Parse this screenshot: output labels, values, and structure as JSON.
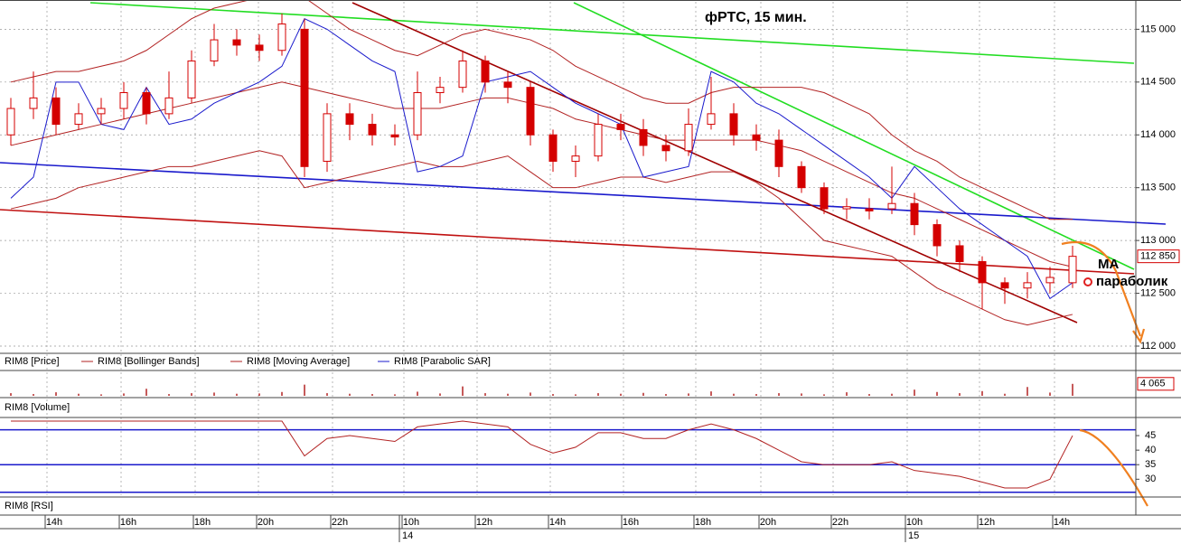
{
  "chart_data": [
    {
      "type": "candlestick",
      "title": "фРТС, 15 мин.",
      "price_name": "RIM8 [Price]",
      "color": "#d40000",
      "open": [
        114000,
        114250,
        114350,
        114100,
        114200,
        114250,
        114400,
        114200,
        114350,
        114700,
        114900,
        114850,
        114800,
        115000,
        113750,
        114200,
        114100,
        114000,
        114000,
        114400,
        114450,
        114700,
        114500,
        114450,
        114000,
        113750,
        113800,
        114100,
        114050,
        113900,
        113850,
        114100,
        114200,
        114000,
        113950,
        113700,
        113500,
        113300,
        113300,
        113300,
        113350,
        113150,
        112950,
        112800,
        112600,
        112550,
        112600,
        112600
      ],
      "high": [
        114350,
        114600,
        114450,
        114300,
        114350,
        114500,
        114450,
        114600,
        114800,
        115050,
        115000,
        114950,
        115150,
        115100,
        114300,
        114300,
        114200,
        114100,
        114600,
        114550,
        114800,
        114750,
        114600,
        114500,
        114050,
        113900,
        114200,
        114200,
        114150,
        114000,
        114250,
        114550,
        114300,
        114100,
        114050,
        113750,
        113550,
        113400,
        113400,
        113700,
        113450,
        113200,
        113000,
        112850,
        112650,
        112700,
        112750,
        112950
      ],
      "low": [
        113900,
        114150,
        114000,
        114050,
        114100,
        114150,
        114100,
        114150,
        114300,
        114650,
        114750,
        114700,
        114750,
        113600,
        113650,
        113950,
        113900,
        113900,
        113950,
        114300,
        114400,
        114400,
        114300,
        113900,
        113650,
        113600,
        113750,
        113950,
        113800,
        113750,
        113800,
        114050,
        113900,
        113850,
        113600,
        113450,
        113250,
        113200,
        113200,
        113250,
        113050,
        112850,
        112700,
        112350,
        112400,
        112450,
        112500,
        112550
      ],
      "close": [
        114250,
        114350,
        114100,
        114200,
        114250,
        114400,
        114200,
        114350,
        114700,
        114900,
        114850,
        114800,
        115050,
        113700,
        114200,
        114100,
        114000,
        113980,
        114400,
        114450,
        114700,
        114500,
        114450,
        114000,
        113750,
        113800,
        114100,
        114050,
        113900,
        113850,
        114100,
        114200,
        114000,
        113950,
        113700,
        113500,
        113300,
        113320,
        113280,
        113350,
        113150,
        112950,
        112800,
        112600,
        112550,
        112600,
        112650,
        112850
      ],
      "series": [
        {
          "name": "RIM8 [Bollinger Bands]",
          "color": "#b22222",
          "upper": [
            114500,
            114550,
            114600,
            114600,
            114650,
            114700,
            114800,
            114950,
            115100,
            115200,
            115250,
            115300,
            115350,
            115300,
            115150,
            115000,
            114900,
            114800,
            114750,
            114850,
            114950,
            115000,
            114950,
            114900,
            114800,
            114650,
            114550,
            114450,
            114350,
            114300,
            114300,
            114400,
            114450,
            114450,
            114450,
            114450,
            114400,
            114300,
            114200,
            114000,
            113850,
            113750,
            113600,
            113500,
            113400,
            113300,
            113200,
            113200
          ],
          "lower": [
            113300,
            113350,
            113400,
            113500,
            113550,
            113600,
            113650,
            113700,
            113700,
            113750,
            113800,
            113850,
            113800,
            113500,
            113550,
            113600,
            113650,
            113700,
            113750,
            113700,
            113700,
            113750,
            113800,
            113650,
            113500,
            113500,
            113550,
            113600,
            113600,
            113550,
            113600,
            113650,
            113650,
            113550,
            113400,
            113200,
            113000,
            112950,
            112900,
            112850,
            112700,
            112550,
            112450,
            112350,
            112250,
            112200,
            112250,
            112300
          ]
        },
        {
          "name": "RIM8 [Moving Average]",
          "color": "#b22222",
          "values": [
            113900,
            113950,
            114000,
            114050,
            114100,
            114150,
            114200,
            114250,
            114300,
            114350,
            114400,
            114450,
            114500,
            114450,
            114400,
            114350,
            114300,
            114250,
            114250,
            114250,
            114300,
            114350,
            114350,
            114300,
            114250,
            114150,
            114100,
            114050,
            114000,
            113950,
            113950,
            113950,
            113950,
            113950,
            113900,
            113850,
            113750,
            113650,
            113550,
            113450,
            113400,
            113300,
            113200,
            113100,
            113000,
            112900,
            112800,
            112750
          ]
        },
        {
          "name": "RIM8 [Parabolic SAR]",
          "color": "#1a1acc",
          "values": [
            113400,
            113600,
            114500,
            114500,
            114100,
            114050,
            114450,
            114100,
            114150,
            114300,
            114400,
            114500,
            114650,
            115100,
            115000,
            114850,
            114700,
            114600,
            113650,
            113700,
            113800,
            114500,
            114550,
            114600,
            114450,
            114300,
            114200,
            114100,
            113600,
            113650,
            113700,
            114600,
            114500,
            114300,
            114200,
            114050,
            113900,
            113750,
            113600,
            113400,
            113700,
            113500,
            113300,
            113150,
            113000,
            112850,
            112450,
            112600
          ]
        }
      ],
      "ylim": [
        111940,
        115260
      ],
      "yticks": [
        {
          "value": 115000,
          "label": "115 000"
        },
        {
          "value": 114500,
          "label": "114 500"
        },
        {
          "value": 114000,
          "label": "114 000"
        },
        {
          "value": 113500,
          "label": "113 500"
        },
        {
          "value": 113000,
          "label": "113 000"
        },
        {
          "value": 112500,
          "label": "112 500"
        },
        {
          "value": 112000,
          "label": "112 000"
        }
      ],
      "current": {
        "value": 112850,
        "label": "112 850"
      },
      "annotations": [
        "MA",
        "параболик"
      ],
      "time_labels": [
        "14h",
        "16h",
        "18h",
        "20h",
        "22h",
        "10h",
        "12h",
        "14h",
        "16h",
        "18h",
        "20h",
        "22h",
        "10h",
        "12h",
        "14h"
      ],
      "day_labels": [
        "14",
        "15"
      ],
      "grid": true
    },
    {
      "type": "bar",
      "title": "RIM8 [Volume]",
      "color": "#b22222",
      "values": [
        900,
        600,
        1200,
        700,
        500,
        800,
        2400,
        600,
        900,
        1100,
        700,
        800,
        1300,
        3800,
        900,
        700,
        600,
        500,
        1400,
        800,
        3200,
        900,
        700,
        1100,
        600,
        500,
        900,
        700,
        1000,
        600,
        800,
        1500,
        700,
        600,
        900,
        800,
        500,
        1200,
        600,
        700,
        2100,
        1300,
        900,
        1600,
        700,
        3000,
        1100,
        4065
      ],
      "ylim": [
        0,
        8000
      ],
      "current": {
        "value": 4065,
        "label": "4 065"
      }
    },
    {
      "type": "line",
      "title": "RIM8 [RSI]",
      "color": "#b22222",
      "level_color": "#1a1acc",
      "values": [
        50,
        50,
        50,
        50,
        50,
        50,
        50,
        50,
        50,
        50,
        50,
        50,
        50,
        38,
        44,
        45,
        44,
        43,
        48,
        49,
        50,
        49,
        48,
        42,
        39,
        41,
        46,
        46,
        44,
        44,
        47,
        49,
        47,
        44,
        40,
        36,
        35,
        35,
        35,
        36,
        33,
        32,
        31,
        29,
        27,
        27,
        30,
        45
      ],
      "ylim": [
        24.5,
        50.3
      ],
      "yticks": [
        45,
        40,
        35,
        30
      ],
      "levels": [
        47,
        35,
        25.5
      ]
    }
  ]
}
